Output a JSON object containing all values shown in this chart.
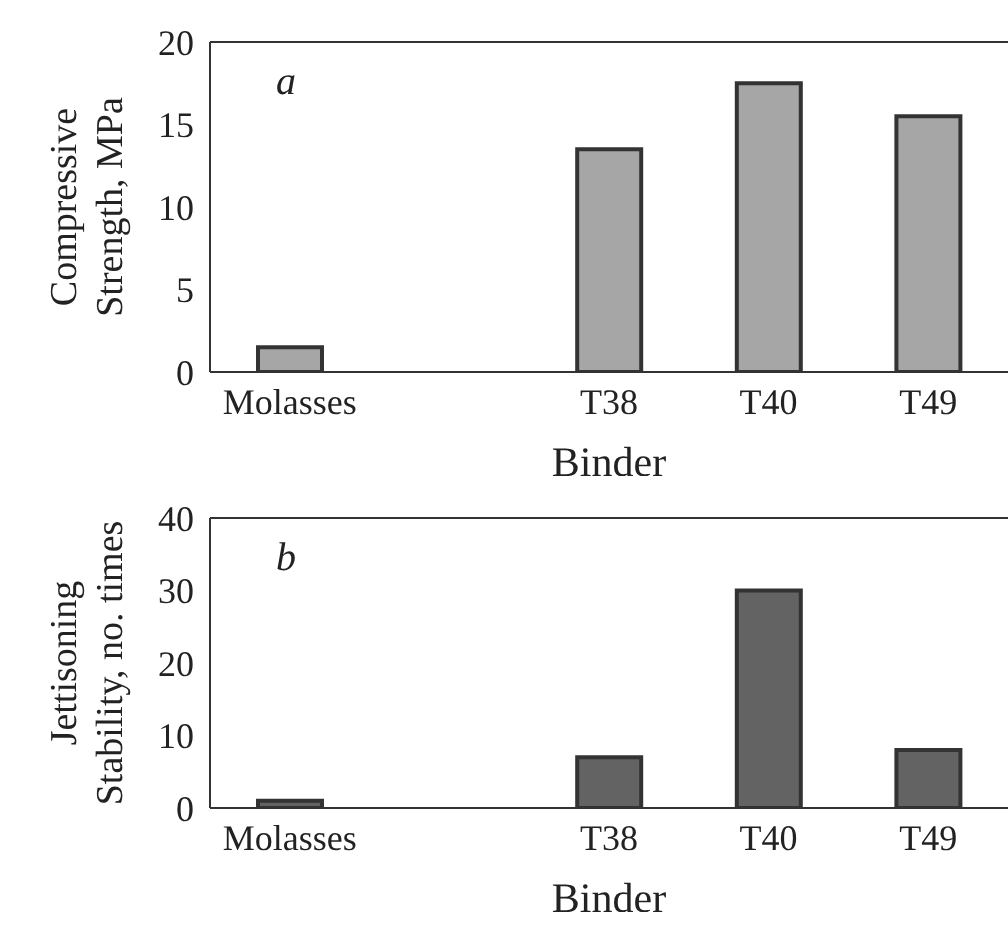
{
  "chart_data": [
    {
      "type": "bar",
      "categories": [
        "Molasses",
        null,
        "T38",
        "T40",
        "T49"
      ],
      "series": [
        {
          "color": "#a6a6a6",
          "values": [
            1.5,
            null,
            13.5,
            17.5,
            15.5
          ]
        }
      ],
      "ylim": [
        0,
        20
      ],
      "yticks": [
        0,
        5,
        10,
        15,
        20
      ],
      "xlabel": "Binder",
      "ylabel": "Compressive Strength, MPa",
      "annotations": [
        "a"
      ],
      "grid": false,
      "legend": false
    },
    {
      "type": "bar",
      "categories": [
        "Molasses",
        null,
        "T38",
        "T40",
        "T49"
      ],
      "series": [
        {
          "color": "#636363",
          "values": [
            1,
            null,
            7,
            30,
            8
          ]
        }
      ],
      "ylim": [
        0,
        40
      ],
      "yticks": [
        0,
        10,
        20,
        30,
        40
      ],
      "xlabel": "Binder",
      "ylabel": "Jettisoning Stability, no. times",
      "annotations": [
        "b"
      ],
      "grid": false,
      "legend": false
    }
  ]
}
